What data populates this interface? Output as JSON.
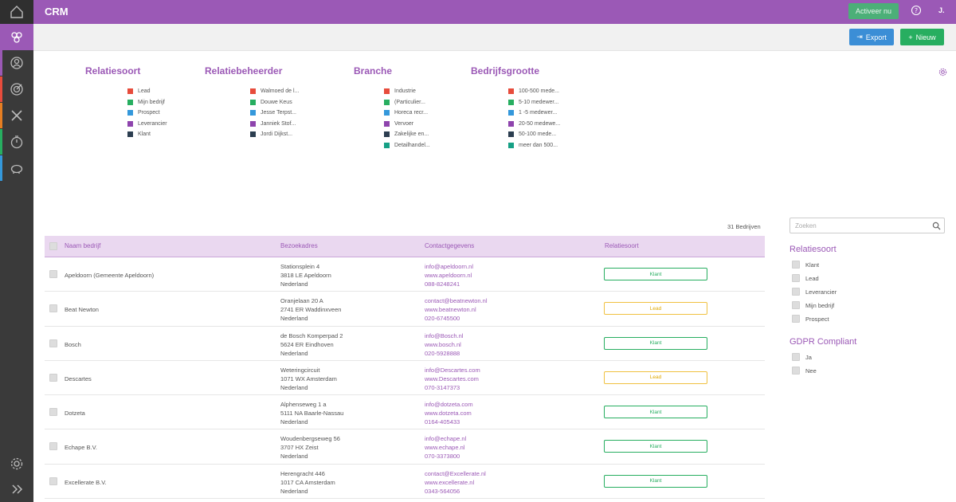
{
  "app": {
    "title": "CRM",
    "activate_label": "Activeer nu",
    "user_initial": "J."
  },
  "rail": {
    "stripe_colors": [
      "#9b59b6",
      "#e74c3c",
      "#e74c3c",
      "#e67e22",
      "#27ae60",
      "#3498db"
    ]
  },
  "toolbar": {
    "export_label": "Export",
    "new_label": "Nieuw"
  },
  "legends": [
    {
      "title": "Relatiesoort",
      "items": [
        {
          "label": "Lead",
          "color": "#e74c3c"
        },
        {
          "label": "Mijn bedrijf",
          "color": "#27ae60"
        },
        {
          "label": "Prospect",
          "color": "#3498db"
        },
        {
          "label": "Leverancier",
          "color": "#8e44ad"
        },
        {
          "label": "Klant",
          "color": "#2c3e50"
        }
      ]
    },
    {
      "title": "Relatiebeheerder",
      "items": [
        {
          "label": "Walmoed de l...",
          "color": "#e74c3c"
        },
        {
          "label": "Douwe Keus",
          "color": "#27ae60"
        },
        {
          "label": "Jesse Terpst...",
          "color": "#3498db"
        },
        {
          "label": "Janniek Stof...",
          "color": "#8e44ad"
        },
        {
          "label": "Jordi Dijkst...",
          "color": "#2c3e50"
        }
      ]
    },
    {
      "title": "Branche",
      "items": [
        {
          "label": "Industrie",
          "color": "#e74c3c"
        },
        {
          "label": "(Particulier...",
          "color": "#27ae60"
        },
        {
          "label": "Horeca recr...",
          "color": "#3498db"
        },
        {
          "label": "Vervoer",
          "color": "#8e44ad"
        },
        {
          "label": "Zakelijke en...",
          "color": "#2c3e50"
        },
        {
          "label": "Detailhandel...",
          "color": "#16a085"
        }
      ]
    },
    {
      "title": "Bedrijfsgrootte",
      "items": [
        {
          "label": "100-500 mede...",
          "color": "#e74c3c"
        },
        {
          "label": "5-10 medewer...",
          "color": "#27ae60"
        },
        {
          "label": "1 -5 medewer...",
          "color": "#3498db"
        },
        {
          "label": "20-50 medewe...",
          "color": "#8e44ad"
        },
        {
          "label": "50-100 mede...",
          "color": "#2c3e50"
        },
        {
          "label": "meer dan 500...",
          "color": "#16a085"
        }
      ]
    }
  ],
  "count_label": "31 Bedrijven",
  "table": {
    "headers": [
      "Naam bedrijf",
      "Bezoekadres",
      "Contactgegevens",
      "Relatiesoort"
    ],
    "rows": [
      {
        "name": "Apeldoorn (Gemeente Apeldoorn)",
        "addr": [
          "Stationsplein 4",
          "3818 LE Apeldoorn",
          "Nederland"
        ],
        "contact": [
          "info@apeldoorn.nl",
          "www.apeldoorn.nl",
          "088-8248241"
        ],
        "type": "Klant"
      },
      {
        "name": "Beat Newton",
        "addr": [
          "Oranjelaan 20 A",
          "2741 ER Waddinxveen",
          "Nederland"
        ],
        "contact": [
          "contact@beatnewton.nl",
          "www.beatnewton.nl",
          "020-6745500"
        ],
        "type": "Lead"
      },
      {
        "name": "Bosch",
        "addr": [
          "de Bosch Komperpad 2",
          "5624 ER Eindhoven",
          "Nederland"
        ],
        "contact": [
          "info@Bosch.nl",
          "www.bosch.nl",
          "020-5928888"
        ],
        "type": "Klant"
      },
      {
        "name": "Descartes",
        "addr": [
          "Weteringcircuit",
          "1071 WX Amsterdam",
          "Nederland"
        ],
        "contact": [
          "info@Descartes.com",
          "www.Descartes.com",
          "070-3147373"
        ],
        "type": "Lead"
      },
      {
        "name": "Dotzeta",
        "addr": [
          "Alphenseweg 1 a",
          "5111 NA Baarle-Nassau",
          "Nederland"
        ],
        "contact": [
          "info@dotzeta.com",
          "www.dotzeta.com",
          "0164-405433"
        ],
        "type": "Klant"
      },
      {
        "name": "Echape B.V.",
        "addr": [
          "Woudenbergseweg 56",
          "3707 HX Zeist",
          "Nederland"
        ],
        "contact": [
          "info@echape.nl",
          "www.echape.nl",
          "070-3373800"
        ],
        "type": "Klant"
      },
      {
        "name": "Excellerate B.V.",
        "addr": [
          "Herengracht 446",
          "1017 CA Amsterdam",
          "Nederland"
        ],
        "contact": [
          "contact@Excellerate.nl",
          "www.excellerate.nl",
          "0343-564056"
        ],
        "type": "Klant"
      }
    ]
  },
  "filters": {
    "search_placeholder": "Zoeken",
    "relatiesoort_title": "Relatiesoort",
    "relatiesoort_options": [
      "Klant",
      "Lead",
      "Leverancier",
      "Mijn bedrijf",
      "Prospect"
    ],
    "gdpr_title": "GDPR Compliant",
    "gdpr_options": [
      "Ja",
      "Nee"
    ]
  }
}
